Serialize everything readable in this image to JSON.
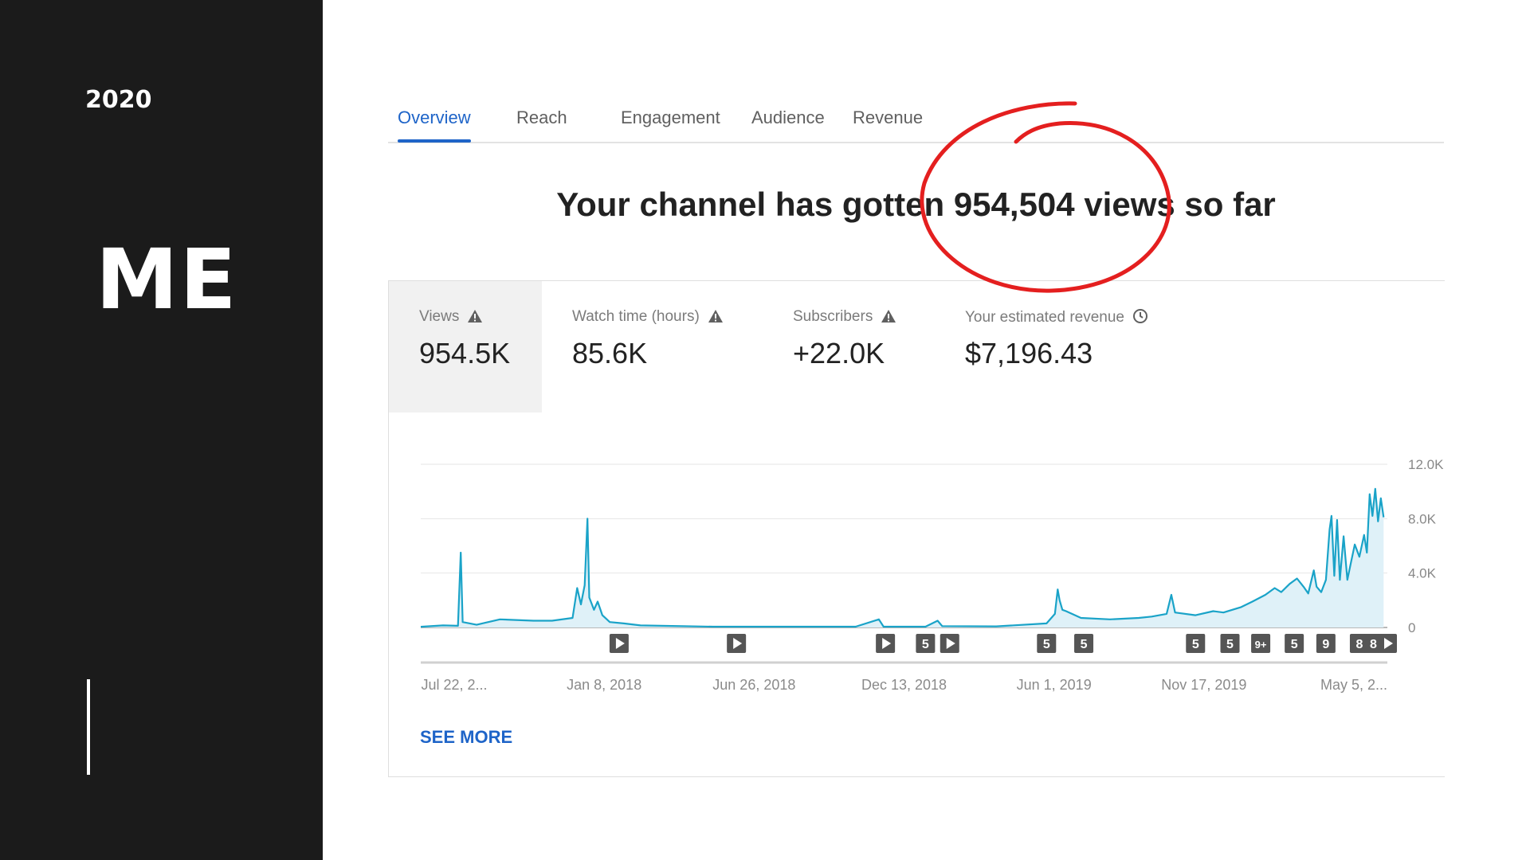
{
  "slide": {
    "year": "2020",
    "name": "ME"
  },
  "tabs": [
    {
      "label": "Overview",
      "active": true
    },
    {
      "label": "Reach",
      "active": false
    },
    {
      "label": "Engagement",
      "active": false
    },
    {
      "label": "Audience",
      "active": false
    },
    {
      "label": "Revenue",
      "active": false
    }
  ],
  "headline": "Your channel has gotten 954,504 views so far",
  "metrics": [
    {
      "label": "Views",
      "value": "954.5K",
      "icon": "warning-icon"
    },
    {
      "label": "Watch time (hours)",
      "value": "85.6K",
      "icon": "warning-icon"
    },
    {
      "label": "Subscribers",
      "value": "+22.0K",
      "icon": "warning-icon"
    },
    {
      "label": "Your estimated revenue",
      "value": "$7,196.43",
      "icon": "clock-icon"
    }
  ],
  "see_more": "SEE MORE",
  "colors": {
    "accent": "#1e64c8",
    "line": "#1aa3c8",
    "fill": "#dff1f8",
    "annotation": "#e41f1f",
    "panel": "#1b1b1b"
  },
  "chart_data": {
    "type": "area",
    "ylim": [
      0,
      12000
    ],
    "yticks": [
      "12.0K",
      "8.0K",
      "4.0K",
      "0"
    ],
    "ytick_values": [
      12000,
      8000,
      4000,
      0
    ],
    "xticks": [
      "Jul 22, 2...",
      "Jan 8, 2018",
      "Jun 26, 2018",
      "Dec 13, 2018",
      "Jun 1, 2019",
      "Nov 17, 2019",
      "May 5, 2..."
    ],
    "date_range": [
      "2017-07-22",
      "2020-05-25"
    ],
    "series": [
      {
        "values": [
          [
            "2017-07-22",
            50
          ],
          [
            "2017-08-15",
            150
          ],
          [
            "2017-08-31",
            120
          ],
          [
            "2017-09-03",
            5500
          ],
          [
            "2017-09-05",
            400
          ],
          [
            "2017-09-20",
            200
          ],
          [
            "2017-10-15",
            600
          ],
          [
            "2017-11-20",
            500
          ],
          [
            "2017-12-10",
            500
          ],
          [
            "2018-01-01",
            700
          ],
          [
            "2018-01-06",
            2900
          ],
          [
            "2018-01-10",
            1700
          ],
          [
            "2018-01-14",
            3100
          ],
          [
            "2018-01-17",
            8000
          ],
          [
            "2018-01-19",
            2200
          ],
          [
            "2018-01-24",
            1300
          ],
          [
            "2018-01-28",
            1900
          ],
          [
            "2018-02-02",
            900
          ],
          [
            "2018-02-10",
            400
          ],
          [
            "2018-02-25",
            300
          ],
          [
            "2018-03-15",
            150
          ],
          [
            "2018-06-01",
            60
          ],
          [
            "2018-11-01",
            60
          ],
          [
            "2018-11-26",
            600
          ],
          [
            "2018-12-01",
            60
          ],
          [
            "2019-01-15",
            60
          ],
          [
            "2019-01-28",
            500
          ],
          [
            "2019-02-02",
            100
          ],
          [
            "2019-04-01",
            80
          ],
          [
            "2019-05-25",
            300
          ],
          [
            "2019-06-03",
            1000
          ],
          [
            "2019-06-06",
            2800
          ],
          [
            "2019-06-08",
            2000
          ],
          [
            "2019-06-11",
            1300
          ],
          [
            "2019-06-15",
            1200
          ],
          [
            "2019-07-01",
            700
          ],
          [
            "2019-08-01",
            600
          ],
          [
            "2019-09-01",
            700
          ],
          [
            "2019-09-15",
            800
          ],
          [
            "2019-10-01",
            1000
          ],
          [
            "2019-10-06",
            2400
          ],
          [
            "2019-10-10",
            1100
          ],
          [
            "2019-11-01",
            900
          ],
          [
            "2019-11-20",
            1200
          ],
          [
            "2019-12-01",
            1100
          ],
          [
            "2019-12-20",
            1500
          ],
          [
            "2020-01-01",
            1900
          ],
          [
            "2020-01-15",
            2400
          ],
          [
            "2020-01-25",
            2900
          ],
          [
            "2020-02-01",
            2600
          ],
          [
            "2020-02-10",
            3200
          ],
          [
            "2020-02-18",
            3600
          ],
          [
            "2020-02-25",
            3000
          ],
          [
            "2020-03-01",
            2500
          ],
          [
            "2020-03-07",
            4200
          ],
          [
            "2020-03-10",
            3000
          ],
          [
            "2020-03-15",
            2600
          ],
          [
            "2020-03-20",
            3500
          ],
          [
            "2020-03-24",
            7200
          ],
          [
            "2020-03-26",
            8200
          ],
          [
            "2020-03-29",
            3800
          ],
          [
            "2020-04-01",
            7900
          ],
          [
            "2020-04-04",
            3500
          ],
          [
            "2020-04-08",
            6700
          ],
          [
            "2020-04-12",
            3500
          ],
          [
            "2020-04-16",
            4800
          ],
          [
            "2020-04-20",
            6100
          ],
          [
            "2020-04-25",
            5200
          ],
          [
            "2020-04-30",
            6800
          ],
          [
            "2020-05-03",
            5500
          ],
          [
            "2020-05-06",
            9800
          ],
          [
            "2020-05-09",
            8200
          ],
          [
            "2020-05-12",
            10200
          ],
          [
            "2020-05-15",
            7800
          ],
          [
            "2020-05-18",
            9500
          ],
          [
            "2020-05-21",
            8100
          ]
        ]
      }
    ],
    "markers": [
      {
        "date": "2018-02-20",
        "label": "",
        "kind": "video"
      },
      {
        "date": "2018-06-26",
        "label": "",
        "kind": "video"
      },
      {
        "date": "2018-12-03",
        "label": "",
        "kind": "video"
      },
      {
        "date": "2019-01-15",
        "label": "5",
        "kind": "count"
      },
      {
        "date": "2019-02-10",
        "label": "",
        "kind": "video"
      },
      {
        "date": "2019-05-25",
        "label": "5",
        "kind": "count"
      },
      {
        "date": "2019-07-04",
        "label": "5",
        "kind": "count"
      },
      {
        "date": "2019-11-01",
        "label": "5",
        "kind": "count"
      },
      {
        "date": "2019-12-08",
        "label": "5",
        "kind": "count"
      },
      {
        "date": "2020-01-10",
        "label": "9+",
        "kind": "count"
      },
      {
        "date": "2020-02-15",
        "label": "5",
        "kind": "count"
      },
      {
        "date": "2020-03-20",
        "label": "9",
        "kind": "count"
      },
      {
        "date": "2020-04-25",
        "label": "8",
        "kind": "count"
      },
      {
        "date": "2020-05-10",
        "label": "8",
        "kind": "count"
      },
      {
        "date": "2020-05-25",
        "label": "",
        "kind": "video"
      }
    ]
  }
}
